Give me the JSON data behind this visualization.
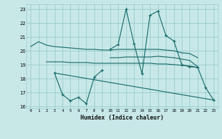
{
  "xlabel": "Humidex (Indice chaleur)",
  "bg_color": "#c8e8e8",
  "grid_color": "#9ecece",
  "line_color": "#1a6b6b",
  "xlim": [
    -0.5,
    23.5
  ],
  "ylim": [
    15.85,
    23.35
  ],
  "yticks": [
    16,
    17,
    18,
    19,
    20,
    21,
    22,
    23
  ],
  "xticks": [
    0,
    1,
    2,
    3,
    4,
    5,
    6,
    7,
    8,
    9,
    10,
    11,
    12,
    13,
    14,
    15,
    16,
    17,
    18,
    19,
    20,
    21,
    22,
    23
  ],
  "curve1_x": [
    0,
    1,
    2,
    3,
    4,
    5,
    6,
    7,
    8,
    9,
    10,
    11,
    12,
    13,
    14,
    15,
    16,
    17,
    18,
    19,
    20,
    21
  ],
  "curve1_y": [
    20.3,
    20.65,
    20.4,
    20.3,
    20.25,
    20.2,
    20.15,
    20.1,
    20.1,
    20.05,
    20.05,
    20.1,
    20.1,
    20.1,
    20.1,
    20.1,
    20.1,
    20.05,
    20.0,
    19.85,
    19.8,
    19.5
  ],
  "curve2_x": [
    2,
    3,
    4,
    5,
    6,
    7,
    8,
    9,
    10,
    11,
    12,
    13,
    14,
    15,
    16,
    17,
    18,
    19,
    20,
    21
  ],
  "curve2_y": [
    19.2,
    19.2,
    19.2,
    19.15,
    19.15,
    19.15,
    19.1,
    19.1,
    19.1,
    19.1,
    19.1,
    19.1,
    19.1,
    19.1,
    19.05,
    19.05,
    19.0,
    18.95,
    18.9,
    18.8
  ],
  "curve3_x": [
    3,
    4,
    5,
    6,
    7,
    8,
    9
  ],
  "curve3_y": [
    18.4,
    16.85,
    16.4,
    16.65,
    16.2,
    18.1,
    18.6
  ],
  "curve4_x": [
    3,
    23
  ],
  "curve4_y": [
    18.4,
    16.45
  ],
  "curve5_x": [
    10,
    11,
    12,
    13,
    14,
    15,
    16,
    17,
    18,
    19,
    20,
    21,
    22,
    23
  ],
  "curve5_y": [
    20.1,
    20.45,
    23.0,
    20.5,
    18.35,
    22.55,
    22.85,
    21.1,
    20.7,
    19.0,
    18.85,
    18.8,
    17.35,
    16.45
  ],
  "curve6_x": [
    10,
    11,
    12,
    13,
    14,
    15,
    16,
    17,
    18,
    19,
    20,
    21
  ],
  "curve6_y": [
    19.5,
    19.5,
    19.55,
    19.55,
    19.55,
    19.55,
    19.6,
    19.55,
    19.5,
    19.4,
    19.3,
    18.85
  ]
}
